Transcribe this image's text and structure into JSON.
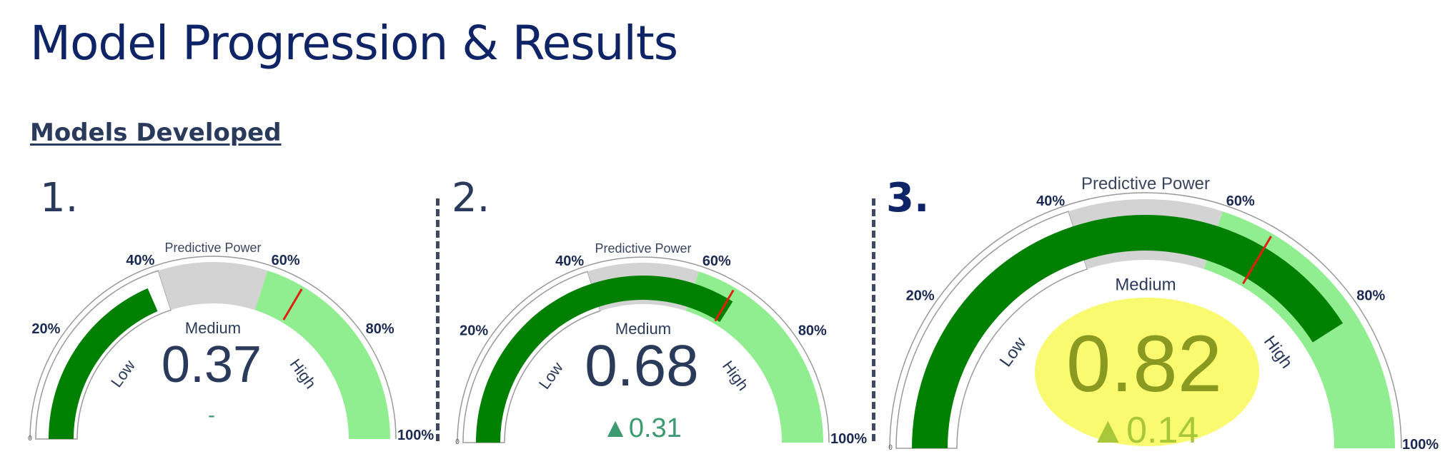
{
  "page": {
    "title": "Model Progression & Results",
    "section_heading": "Models Developed"
  },
  "colors": {
    "title": "#0f2466",
    "low_band_bg": "#ffffff",
    "medium_band_bg": "#d3d3d3",
    "high_band_bg": "#90ee90",
    "value_bar": "#008000",
    "threshold_marker": "#e02010",
    "value_text": "#2a3a5a",
    "delta_text": "#3d9970",
    "highlight_fill": "#fafa60"
  },
  "gauges": [
    {
      "number": "1.",
      "title": "Predictive Power",
      "value": 0.37,
      "value_label": "0.37",
      "delta_label": "-",
      "threshold": 0.67,
      "highlighted": false,
      "min_label": "0",
      "band_labels": [
        "Low",
        "Medium",
        "High"
      ],
      "tick_labels": [
        "20%",
        "40%",
        "60%",
        "80%",
        "100%"
      ]
    },
    {
      "number": "2.",
      "title": "Predictive Power",
      "value": 0.68,
      "value_label": "0.68",
      "delta_label": "▲0.31",
      "threshold": 0.67,
      "highlighted": false,
      "min_label": "0",
      "band_labels": [
        "Low",
        "Medium",
        "High"
      ],
      "tick_labels": [
        "20%",
        "40%",
        "60%",
        "80%",
        "100%"
      ]
    },
    {
      "number": "3.",
      "title": "Predictive Power",
      "value": 0.82,
      "value_label": "0.82",
      "delta_label": "▲0.14",
      "threshold": 0.67,
      "highlighted": true,
      "min_label": "0",
      "band_labels": [
        "Low",
        "Medium",
        "High"
      ],
      "tick_labels": [
        "20%",
        "40%",
        "60%",
        "80%",
        "100%"
      ]
    }
  ]
}
